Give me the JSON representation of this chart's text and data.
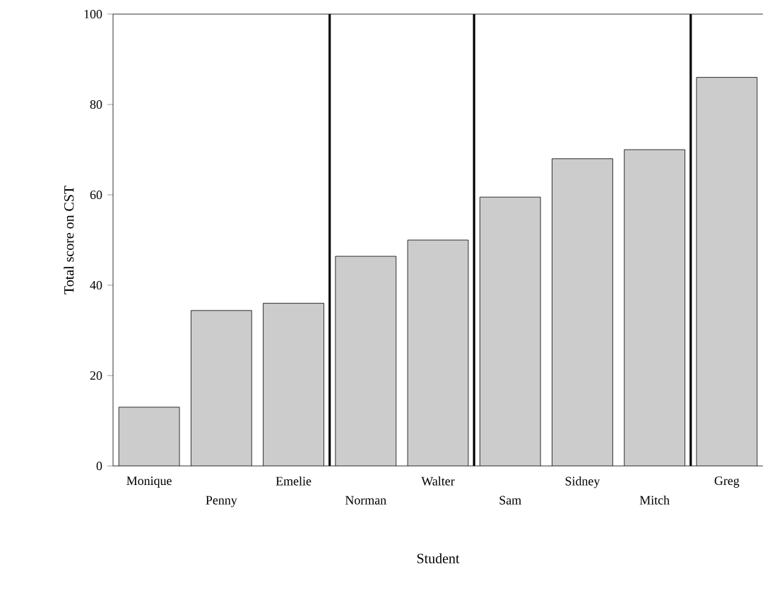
{
  "chart_data": {
    "type": "bar",
    "xlabel": "Student",
    "ylabel": "Total score on CST",
    "categories": [
      "Monique",
      "Penny",
      "Emelie",
      "Norman",
      "Walter",
      "Sam",
      "Sidney",
      "Mitch",
      "Greg"
    ],
    "values": [
      13,
      34.4,
      36,
      46.4,
      50,
      59.5,
      68,
      70,
      86
    ],
    "color": "#cccccc",
    "ylim": [
      0,
      100
    ],
    "yticks": [
      0,
      20,
      40,
      60,
      80,
      100
    ],
    "grid": false
  }
}
